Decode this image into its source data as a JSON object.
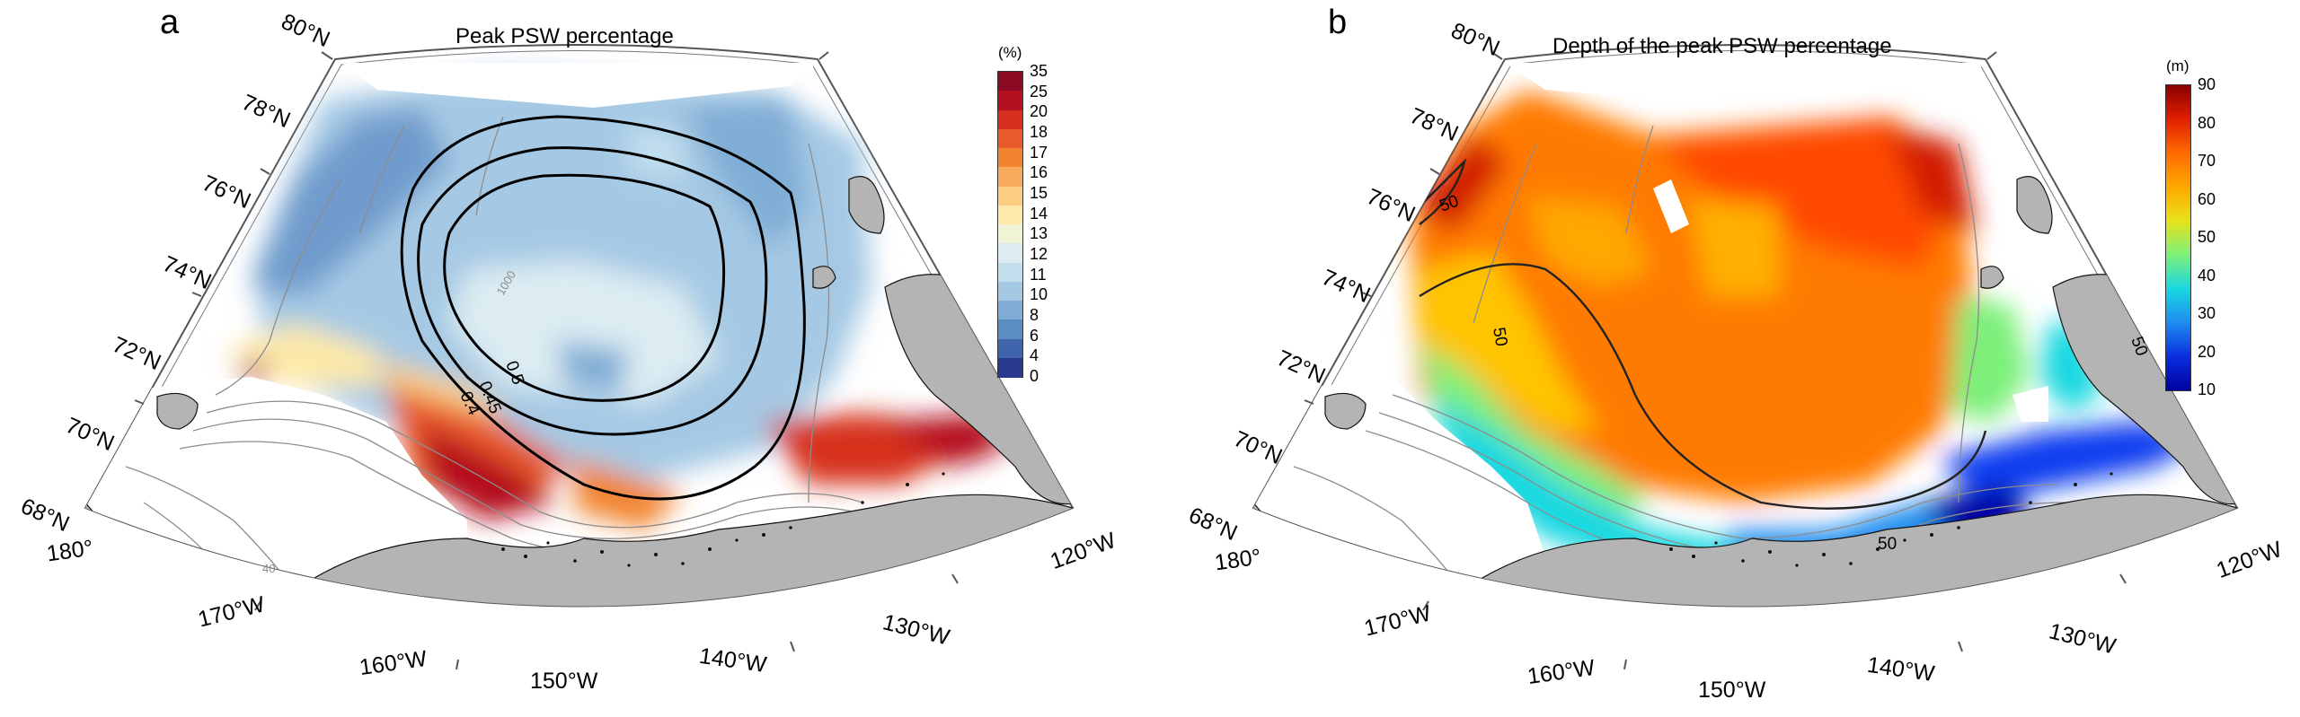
{
  "panel_a": {
    "label": "a",
    "title": "Peak PSW percentage",
    "colorbar": {
      "unit": "(%)",
      "ticks": [
        "35",
        "25",
        "20",
        "18",
        "17",
        "16",
        "15",
        "14",
        "13",
        "12",
        "11",
        "10",
        "8",
        "6",
        "4",
        "0"
      ],
      "colors": [
        "#8b0a24",
        "#b5101f",
        "#d7301f",
        "#e85a2a",
        "#f2842f",
        "#f7a95c",
        "#fbcd80",
        "#fde9a8",
        "#f0f3d4",
        "#dcecf2",
        "#c3dfee",
        "#a5c9e4",
        "#7fadd5",
        "#5c8dc2",
        "#3f64ac",
        "#2a3990"
      ]
    },
    "contours": {
      "labels": [
        "0.5",
        "0.45",
        "0.4"
      ]
    }
  },
  "panel_b": {
    "label": "b",
    "title": "Depth of the peak PSW percentage",
    "colorbar": {
      "unit": "(m)",
      "ticks": [
        "90",
        "80",
        "70",
        "60",
        "50",
        "40",
        "30",
        "20",
        "10"
      ],
      "colors": [
        "#8b0000",
        "#e01e00",
        "#ff6a00",
        "#ffa800",
        "#e8e21a",
        "#7cf07a",
        "#19d8e0",
        "#1e8cf0",
        "#0a2ee0",
        "#0000a0"
      ]
    },
    "contours": {
      "labels": [
        "50",
        "50",
        "50",
        "50"
      ]
    }
  },
  "map": {
    "lat_labels": [
      "80°N",
      "78°N",
      "76°N",
      "74°N",
      "72°N",
      "70°N",
      "68°N"
    ],
    "lon_labels": [
      "180°",
      "170°W",
      "160°W",
      "150°W",
      "140°W",
      "130°W",
      "120°W"
    ],
    "bathymetry_labels": [
      "1000",
      "40"
    ],
    "colors": {
      "land": "#b4b4b4",
      "bathymetry": "#8c8c8c",
      "frame": "#555555",
      "contour": "#111111"
    }
  }
}
